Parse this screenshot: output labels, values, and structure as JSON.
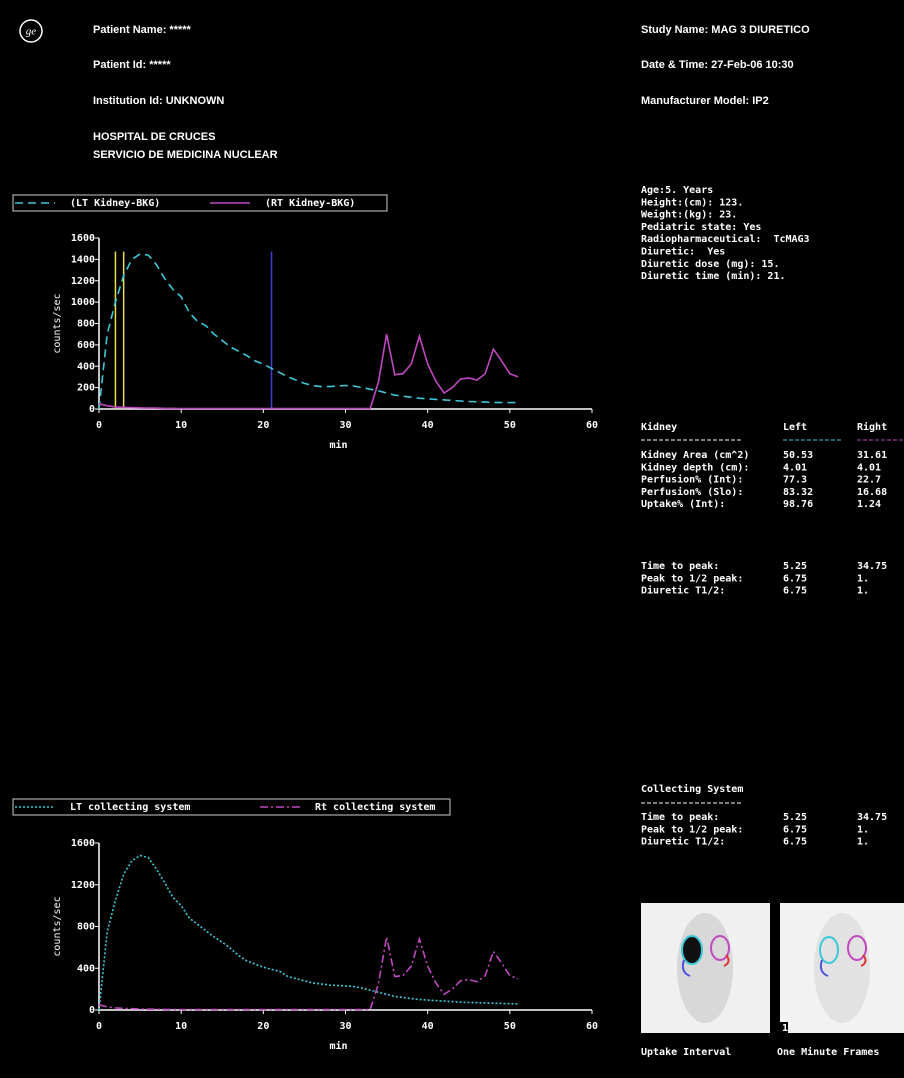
{
  "header": {
    "patient_name": "Patient Name: *****",
    "patient_id": "Patient Id: *****",
    "institution_id": "Institution Id: UNKNOWN",
    "hospital_lines": [
      "HOSPITAL DE CRUCES",
      "SERVICIO DE MEDICINA NUCLEAR"
    ],
    "study_name": "Study Name: MAG 3 DIURETICO",
    "date_time": "Date & Time: 27-Feb-06 10:30",
    "manufacturer_model": "Manufacturer Model: IP2"
  },
  "patient_info": [
    "Age:5. Years",
    "Height:(cm): 123.",
    "Weight:(kg): 23.",
    "Pediatric state: Yes",
    "Radiopharmaceutical:  TcMAG3",
    "Diuretic:  Yes",
    "Diuretic dose (mg): 15.",
    "Diuretic time (min): 21."
  ],
  "kidney_table": {
    "header": [
      "Kidney",
      "Left",
      "Right"
    ],
    "rows": [
      [
        "Kidney Area (cm^2)",
        "50.53",
        "31.61"
      ],
      [
        "Kidney depth (cm):",
        "4.01",
        "4.01"
      ],
      [
        "Perfusion% (Int):",
        "77.3",
        "22.7"
      ],
      [
        "Perfusion% (Slo):",
        "83.32",
        "16.68"
      ],
      [
        "Uptake% (Int):",
        "98.76",
        "1.24"
      ]
    ]
  },
  "timing_table": {
    "rows": [
      [
        "Time to peak:",
        "5.25",
        "34.75"
      ],
      [
        "Peak to 1/2 peak:",
        "6.75",
        "1."
      ],
      [
        "Diuretic T1/2:",
        "6.75",
        "1."
      ]
    ]
  },
  "collecting_table": {
    "title": "Collecting System",
    "rows": [
      [
        "Time to peak:",
        "5.25",
        "34.75"
      ],
      [
        "Peak to 1/2 peak:",
        "6.75",
        "1."
      ],
      [
        "Diuretic T1/2:",
        "6.75",
        "1."
      ]
    ]
  },
  "images": [
    {
      "caption": "Uptake Interval"
    },
    {
      "caption": "One Minute Frames",
      "frame_label": "1"
    }
  ],
  "chart_data": [
    {
      "type": "line",
      "x_label": "min",
      "y_label": "counts/sec",
      "xlim": [
        0,
        60
      ],
      "ylim": [
        0,
        1600
      ],
      "xticks": [
        0,
        10,
        20,
        30,
        40,
        50,
        60
      ],
      "yticks": [
        0,
        200,
        400,
        600,
        800,
        1000,
        1200,
        1400,
        1600
      ],
      "x": [
        0,
        1,
        2,
        3,
        4,
        5,
        6,
        7,
        8,
        9,
        10,
        11,
        12,
        13,
        14,
        15,
        16,
        17,
        18,
        19,
        20,
        21,
        22,
        23,
        24,
        25,
        26,
        27,
        28,
        29,
        30,
        31,
        32,
        33,
        34,
        35,
        36,
        37,
        38,
        39,
        40,
        41,
        42,
        43,
        44,
        45,
        46,
        47,
        48,
        49,
        50,
        51
      ],
      "series": [
        {
          "name": "(LT Kidney-BKG)",
          "color": "#3cc8d8",
          "dash": "dashed",
          "values": [
            0,
            700,
            1000,
            1250,
            1400,
            1450,
            1440,
            1350,
            1220,
            1120,
            1050,
            900,
            820,
            780,
            700,
            640,
            580,
            540,
            500,
            450,
            420,
            380,
            340,
            300,
            270,
            240,
            220,
            210,
            210,
            215,
            220,
            215,
            200,
            185,
            170,
            150,
            130,
            120,
            110,
            100,
            95,
            90,
            85,
            80,
            75,
            70,
            68,
            65,
            62,
            60,
            60,
            60
          ]
        },
        {
          "name": "(RT Kidney-BKG)",
          "color": "#c048c0",
          "dash": "solid",
          "values": [
            50,
            30,
            20,
            15,
            12,
            10,
            8,
            8,
            6,
            6,
            5,
            5,
            5,
            5,
            5,
            5,
            5,
            5,
            5,
            5,
            5,
            5,
            5,
            5,
            5,
            5,
            5,
            5,
            5,
            5,
            5,
            5,
            5,
            5,
            250,
            700,
            320,
            330,
            420,
            680,
            420,
            260,
            150,
            200,
            280,
            290,
            270,
            330,
            560,
            450,
            330,
            300
          ]
        }
      ],
      "markers": [
        {
          "x": 2,
          "color": "#e8e050"
        },
        {
          "x": 3,
          "color": "#e8e050"
        },
        {
          "x": 21,
          "color": "#4040d0"
        }
      ]
    },
    {
      "type": "line",
      "x_label": "min",
      "y_label": "counts/sec",
      "xlim": [
        0,
        60
      ],
      "ylim": [
        0,
        1600
      ],
      "xticks": [
        0,
        10,
        20,
        30,
        40,
        50,
        60
      ],
      "yticks": [
        0,
        400,
        800,
        1200,
        1600
      ],
      "x": [
        0,
        1,
        2,
        3,
        4,
        5,
        6,
        7,
        8,
        9,
        10,
        11,
        12,
        13,
        14,
        15,
        16,
        17,
        18,
        19,
        20,
        21,
        22,
        23,
        24,
        25,
        26,
        27,
        28,
        29,
        30,
        31,
        32,
        33,
        34,
        35,
        36,
        37,
        38,
        39,
        40,
        41,
        42,
        43,
        44,
        45,
        46,
        47,
        48,
        49,
        50,
        51
      ],
      "series": [
        {
          "name": "LT collecting system",
          "color": "#3cc8d8",
          "dash": "dotted",
          "values": [
            0,
            750,
            1050,
            1300,
            1430,
            1480,
            1460,
            1350,
            1220,
            1080,
            1000,
            880,
            820,
            760,
            700,
            650,
            590,
            520,
            470,
            440,
            410,
            390,
            370,
            320,
            300,
            280,
            260,
            250,
            240,
            235,
            230,
            225,
            210,
            190,
            170,
            150,
            130,
            120,
            110,
            100,
            95,
            90,
            85,
            80,
            75,
            72,
            70,
            68,
            65,
            62,
            60,
            58
          ]
        },
        {
          "name": "Rt collecting system",
          "color": "#c048c0",
          "dash": "dashdot",
          "values": [
            50,
            30,
            20,
            15,
            12,
            10,
            8,
            8,
            6,
            6,
            5,
            5,
            5,
            5,
            5,
            5,
            5,
            5,
            5,
            5,
            5,
            5,
            5,
            5,
            5,
            5,
            5,
            5,
            5,
            5,
            5,
            5,
            5,
            5,
            250,
            700,
            320,
            330,
            420,
            680,
            420,
            260,
            150,
            200,
            280,
            290,
            270,
            330,
            560,
            450,
            330,
            300
          ]
        }
      ]
    }
  ]
}
